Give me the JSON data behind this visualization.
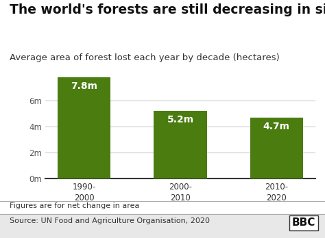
{
  "title": "The world's forests are still decreasing in size",
  "subtitle": "Average area of forest lost each year by decade (hectares)",
  "categories": [
    "1990-\n2000",
    "2000-\n2010",
    "2010-\n2020"
  ],
  "values": [
    7800000,
    5200000,
    4700000
  ],
  "bar_labels": [
    "7.8m",
    "5.2m",
    "4.7m"
  ],
  "bar_color": "#4a7c10",
  "background_color": "#ffffff",
  "yticks": [
    0,
    2000000,
    4000000,
    6000000
  ],
  "ytick_labels": [
    "0m",
    "2m",
    "4m",
    "6m"
  ],
  "ylim": [
    0,
    8600000
  ],
  "footer_note": "Figures are for net change in area",
  "source": "Source: UN Food and Agriculture Organisation, 2020",
  "bbc_label": "BBC",
  "title_fontsize": 13.5,
  "subtitle_fontsize": 9.5,
  "bar_label_fontsize": 10,
  "footer_fontsize": 8,
  "source_fontsize": 8
}
